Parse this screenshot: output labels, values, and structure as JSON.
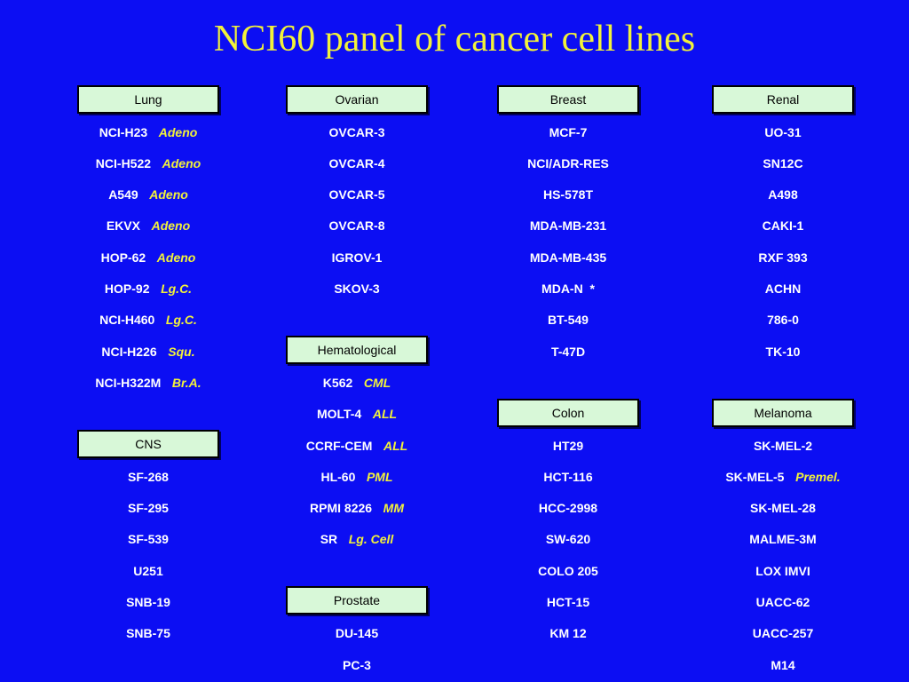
{
  "title": "NCI60 panel of cancer cell lines",
  "colors": {
    "background": "#0c0ef3",
    "title": "#f2f23a",
    "subtype": "#f2f23a",
    "cell_line": "#ffffff",
    "header_fill": "#d8f8d8"
  },
  "columns": [
    {
      "groups": [
        {
          "header": "Lung",
          "items": [
            {
              "name": "NCI-H23",
              "sub": "Adeno"
            },
            {
              "name": "NCI-H522",
              "sub": "Adeno"
            },
            {
              "name": "A549",
              "sub": "Adeno"
            },
            {
              "name": "EKVX",
              "sub": "Adeno"
            },
            {
              "name": "HOP-62",
              "sub": "Adeno"
            },
            {
              "name": "HOP-92",
              "sub": "Lg.C."
            },
            {
              "name": "NCI-H460",
              "sub": "Lg.C."
            },
            {
              "name": "NCI-H226",
              "sub": "Squ."
            },
            {
              "name": "NCI-H322M",
              "sub": "Br.A."
            }
          ]
        },
        {
          "header": "CNS",
          "items": [
            {
              "name": "SF-268"
            },
            {
              "name": "SF-295"
            },
            {
              "name": "SF-539"
            },
            {
              "name": "U251"
            },
            {
              "name": "SNB-19"
            },
            {
              "name": "SNB-75"
            }
          ]
        }
      ]
    },
    {
      "groups": [
        {
          "header": "Ovarian",
          "items": [
            {
              "name": "OVCAR-3"
            },
            {
              "name": "OVCAR-4"
            },
            {
              "name": "OVCAR-5"
            },
            {
              "name": "OVCAR-8"
            },
            {
              "name": "IGROV-1"
            },
            {
              "name": "SKOV-3"
            }
          ]
        },
        {
          "header": "Hematological",
          "items": [
            {
              "name": "K562",
              "sub": "CML"
            },
            {
              "name": "MOLT-4",
              "sub": "ALL"
            },
            {
              "name": "CCRF-CEM",
              "sub": "ALL"
            },
            {
              "name": "HL-60",
              "sub": "PML"
            },
            {
              "name": "RPMI 8226",
              "sub": "MM"
            },
            {
              "name": "SR",
              "sub": "Lg. Cell"
            }
          ]
        },
        {
          "header": "Prostate",
          "items": [
            {
              "name": "DU-145"
            },
            {
              "name": "PC-3"
            }
          ]
        }
      ]
    },
    {
      "groups": [
        {
          "header": "Breast",
          "items": [
            {
              "name": "MCF-7"
            },
            {
              "name": "NCI/ADR-RES"
            },
            {
              "name": "HS-578T"
            },
            {
              "name": "MDA-MB-231"
            },
            {
              "name": "MDA-MB-435"
            },
            {
              "name": "MDA-N  *"
            },
            {
              "name": "BT-549"
            },
            {
              "name": "T-47D"
            }
          ]
        },
        {
          "header": "Colon",
          "items": [
            {
              "name": "HT29"
            },
            {
              "name": "HCT-116"
            },
            {
              "name": "HCC-2998"
            },
            {
              "name": "SW-620"
            },
            {
              "name": "COLO 205"
            },
            {
              "name": "HCT-15"
            },
            {
              "name": "KM 12"
            }
          ]
        }
      ]
    },
    {
      "groups": [
        {
          "header": "Renal",
          "items": [
            {
              "name": "UO-31"
            },
            {
              "name": "SN12C"
            },
            {
              "name": "A498"
            },
            {
              "name": "CAKI-1"
            },
            {
              "name": "RXF 393"
            },
            {
              "name": "ACHN"
            },
            {
              "name": "786-0"
            },
            {
              "name": "TK-10"
            }
          ]
        },
        {
          "header": "Melanoma",
          "items": [
            {
              "name": "SK-MEL-2"
            },
            {
              "name": "SK-MEL-5",
              "sub": "Premel."
            },
            {
              "name": "SK-MEL-28"
            },
            {
              "name": "MALME-3M"
            },
            {
              "name": "LOX IMVI"
            },
            {
              "name": "UACC-62"
            },
            {
              "name": "UACC-257"
            },
            {
              "name": "M14"
            }
          ]
        }
      ]
    }
  ]
}
